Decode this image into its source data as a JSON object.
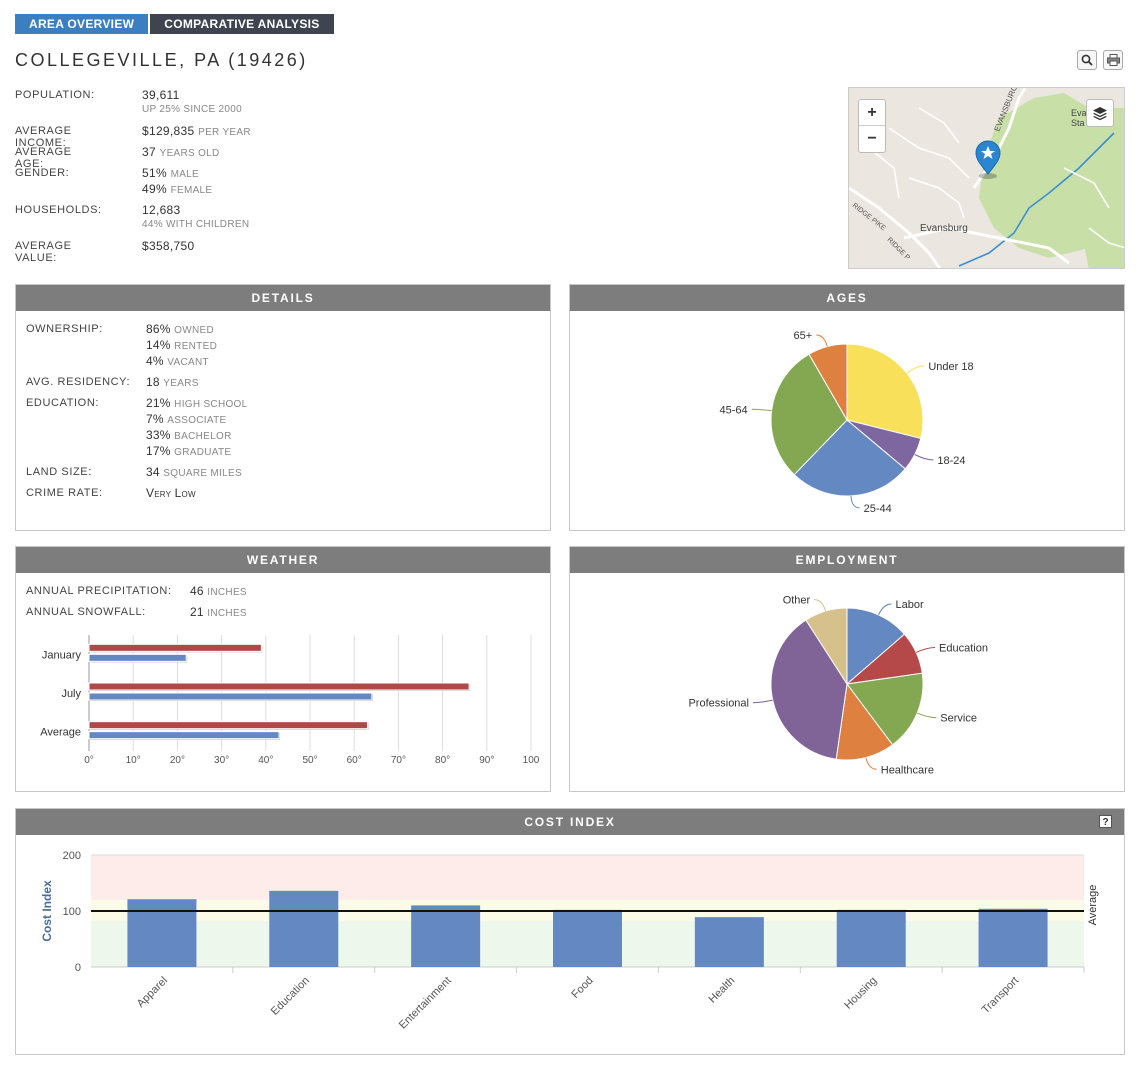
{
  "tabs": [
    {
      "label": "AREA OVERVIEW",
      "active": true
    },
    {
      "label": "COMPARATIVE ANALYSIS",
      "active": false
    }
  ],
  "title": "COLLEGEVILLE, PA (19426)",
  "toolbar": {
    "search_icon": "magnifier-icon",
    "print_icon": "printer-icon"
  },
  "overview": {
    "population": {
      "label": "POPULATION:",
      "value": "39,611",
      "sub": "UP 25% SINCE 2000"
    },
    "income": {
      "label": "AVERAGE INCOME:",
      "value": "$129,835",
      "unit": "PER YEAR"
    },
    "age": {
      "label": "AVERAGE AGE:",
      "value": "37",
      "unit": "YEARS OLD"
    },
    "gender": {
      "label": "GENDER:",
      "male_value": "51%",
      "male_unit": "MALE",
      "female_value": "49%",
      "female_unit": "FEMALE"
    },
    "households": {
      "label": "HOUSEHOLDS:",
      "value": "12,683",
      "sub": "44% WITH CHILDREN"
    },
    "value": {
      "label": "AVERAGE VALUE:",
      "value": "$358,750"
    }
  },
  "map": {
    "zoom_in": "+",
    "zoom_out": "−",
    "labels": {
      "evansburg": "Evansburg",
      "evansburg_road": "EVANSBURG",
      "ridge_pike": "RIDGE PIKE",
      "ridge_pike2": "RIDGE P",
      "station_1": "Eva",
      "station_2": "Sta"
    },
    "colors": {
      "land": "#ebe6e0",
      "park": "#c8e0a8",
      "road": "#ffffff",
      "water": "#3a8fd0",
      "marker": "#2b86d1"
    }
  },
  "details": {
    "header": "DETAILS",
    "ownership": {
      "label": "OWNERSHIP:",
      "rows": [
        {
          "value": "86%",
          "unit": "OWNED"
        },
        {
          "value": "14%",
          "unit": "RENTED"
        },
        {
          "value": "4%",
          "unit": "VACANT"
        }
      ]
    },
    "residency": {
      "label": "AVG. RESIDENCY:",
      "value": "18",
      "unit": "YEARS"
    },
    "education": {
      "label": "EDUCATION:",
      "rows": [
        {
          "value": "21%",
          "unit": "HIGH SCHOOL"
        },
        {
          "value": "7%",
          "unit": "ASSOCIATE"
        },
        {
          "value": "33%",
          "unit": "BACHELOR"
        },
        {
          "value": "17%",
          "unit": "GRADUATE"
        }
      ]
    },
    "land": {
      "label": "LAND SIZE:",
      "value": "34",
      "unit": "SQUARE MILES"
    },
    "crime": {
      "label": "CRIME RATE:",
      "value": "Very Low"
    }
  },
  "weather": {
    "header": "WEATHER",
    "precip": {
      "label": "ANNUAL PRECIPITATION:",
      "value": "46",
      "unit": "INCHES"
    },
    "snow": {
      "label": "ANNUAL SNOWFALL:",
      "value": "21",
      "unit": "INCHES"
    }
  },
  "ages_header": "AGES",
  "employment_header": "EMPLOYMENT",
  "cost_header": "COST INDEX",
  "cost_help": "?",
  "chart_data": [
    {
      "type": "pie",
      "title": "AGES",
      "labels": [
        "Under 18",
        "18-24",
        "25-44",
        "45-64",
        "65+"
      ],
      "values": [
        26,
        6.5,
        23.5,
        26.5,
        7.5
      ],
      "colors": [
        "#f8e05a",
        "#7e66a0",
        "#6388c2",
        "#84a852",
        "#de8040"
      ]
    },
    {
      "type": "pie",
      "title": "EMPLOYMENT",
      "labels": [
        "Labor",
        "Education",
        "Service",
        "Healthcare",
        "Professional",
        "Other"
      ],
      "values": [
        12,
        8,
        15,
        11,
        34,
        8
      ],
      "colors": [
        "#6388c2",
        "#b54848",
        "#84a852",
        "#de8040",
        "#806498",
        "#d6c08c"
      ]
    },
    {
      "type": "bar",
      "orientation": "horizontal",
      "title": "WEATHER",
      "categories": [
        "January",
        "July",
        "Average"
      ],
      "series": [
        {
          "values": [
            39,
            86,
            63
          ],
          "color": "#b04848"
        },
        {
          "values": [
            22,
            64,
            43
          ],
          "color": "#6388c2"
        }
      ],
      "xlim": [
        0,
        100
      ],
      "xticks": [
        "0°",
        "10°",
        "20°",
        "30°",
        "40°",
        "50°",
        "60°",
        "70°",
        "80°",
        "90°",
        "100"
      ]
    },
    {
      "type": "bar",
      "title": "COST INDEX",
      "categories": [
        "Apparel",
        "Education",
        "Entertainment",
        "Food",
        "Health",
        "Housing",
        "Transport"
      ],
      "values": [
        121,
        136,
        110,
        102,
        89,
        102,
        104
      ],
      "ylim": [
        0,
        200
      ],
      "yticks": [
        "0",
        "100",
        "200"
      ],
      "ylabel": "Cost Index",
      "y2label": "Average",
      "reference_line": 100,
      "bands": [
        {
          "from": 0,
          "to": 82,
          "color": "#eef7ec"
        },
        {
          "from": 82,
          "to": 120,
          "color": "#fcfbe8"
        },
        {
          "from": 120,
          "to": 200,
          "color": "#fdecea"
        }
      ],
      "color": "#6388c2"
    }
  ]
}
